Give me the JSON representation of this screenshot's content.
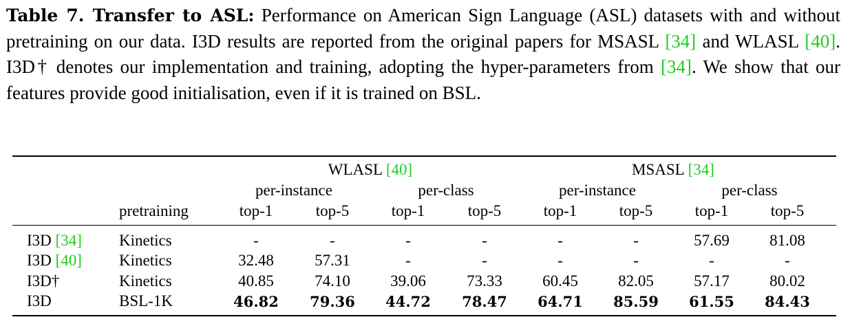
{
  "caption": {
    "label": "Table 7. Transfer to ASL:",
    "p1": " Performance on American Sign Language (ASL) datasets with and without pretraining on our data. I3D results are reported from the original papers for MSASL ",
    "c1": "[34]",
    "p2": " and WLASL ",
    "c2": "[40]",
    "p3": ". I3D† denotes our implementation and training, adopting the hyper-parameters from ",
    "c3": "[34]",
    "p4": ". We show that our features provide good initialisation, even if it is trained on BSL."
  },
  "table": {
    "groups": [
      {
        "name": "WLASL ",
        "cite": "[40]"
      },
      {
        "name": "MSASL ",
        "cite": "[34]"
      }
    ],
    "subgroups": [
      "per-instance",
      "per-class",
      "per-instance",
      "per-class"
    ],
    "pretraining_header": "pretraining",
    "metrics": [
      "top-1",
      "top-5",
      "top-1",
      "top-5",
      "top-1",
      "top-5",
      "top-1",
      "top-5"
    ],
    "rows": [
      {
        "model": "I3D ",
        "cite": "[34]",
        "pretraining": "Kinetics",
        "values": [
          "-",
          "-",
          "-",
          "-",
          "-",
          "-",
          "57.69",
          "81.08"
        ],
        "bold": false
      },
      {
        "model": "I3D ",
        "cite": "[40]",
        "pretraining": "Kinetics",
        "values": [
          "32.48",
          "57.31",
          "-",
          "-",
          "-",
          "-",
          "-",
          "-"
        ],
        "bold": false
      },
      {
        "model": "I3D†",
        "cite": "",
        "pretraining": "Kinetics",
        "values": [
          "40.85",
          "74.10",
          "39.06",
          "73.33",
          "60.45",
          "82.05",
          "57.17",
          "80.02"
        ],
        "bold": false
      },
      {
        "model": "I3D",
        "cite": "",
        "pretraining": "BSL-1K",
        "values": [
          "46.82",
          "79.36",
          "44.72",
          "78.47",
          "64.71",
          "85.59",
          "61.55",
          "84.43"
        ],
        "bold": true
      }
    ]
  }
}
